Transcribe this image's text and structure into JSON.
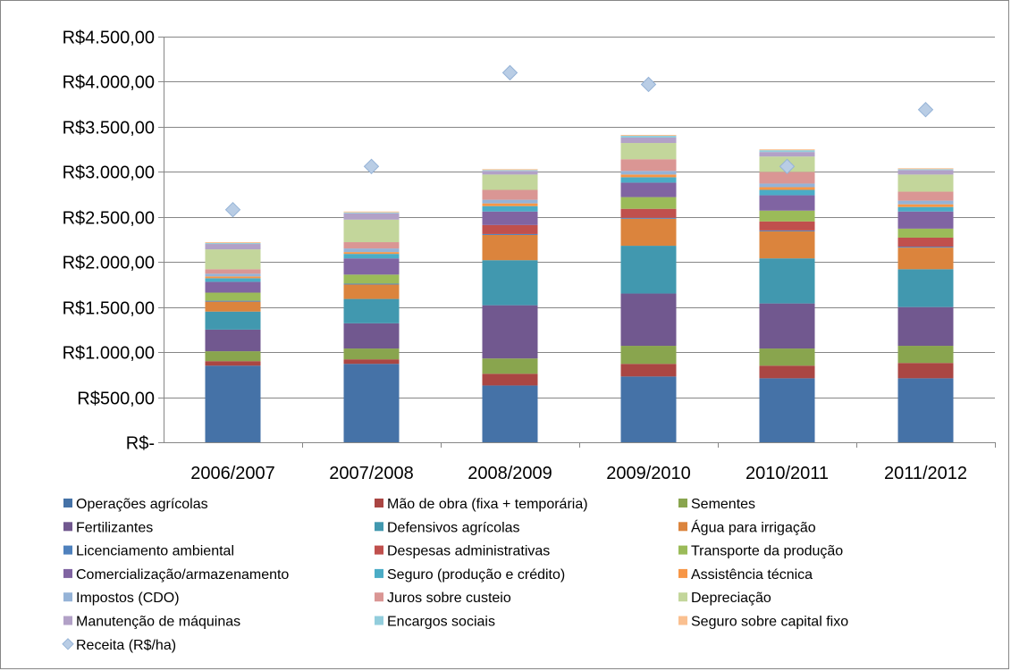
{
  "chart_data": {
    "type": "bar",
    "stacked": true,
    "title": "",
    "xlabel": "",
    "ylabel": "",
    "ylim": [
      0,
      4500
    ],
    "y_ticks": [
      {
        "value": 0,
        "label": "R$-"
      },
      {
        "value": 500,
        "label": "R$500,00"
      },
      {
        "value": 1000,
        "label": "R$1.000,00"
      },
      {
        "value": 1500,
        "label": "R$1.500,00"
      },
      {
        "value": 2000,
        "label": "R$2.000,00"
      },
      {
        "value": 2500,
        "label": "R$2.500,00"
      },
      {
        "value": 3000,
        "label": "R$3.000,00"
      },
      {
        "value": 3500,
        "label": "R$3.500,00"
      },
      {
        "value": 4000,
        "label": "R$4.000,00"
      },
      {
        "value": 4500,
        "label": "R$4.500,00"
      }
    ],
    "grid": true,
    "legend_position": "bottom",
    "categories": [
      "2006/2007",
      "2007/2008",
      "2008/2009",
      "2009/2010",
      "2010/2011",
      "2011/2012"
    ],
    "series": [
      {
        "name": "Operações agrícolas",
        "color": "#4572A7",
        "values": [
          850,
          870,
          630,
          730,
          710,
          710
        ]
      },
      {
        "name": "Mão de obra (fixa + temporária)",
        "color": "#AA4643",
        "values": [
          50,
          50,
          130,
          140,
          140,
          170
        ]
      },
      {
        "name": "Sementes",
        "color": "#89A54E",
        "values": [
          110,
          120,
          170,
          200,
          190,
          190
        ]
      },
      {
        "name": "Fertilizantes",
        "color": "#71588F",
        "values": [
          240,
          280,
          590,
          580,
          500,
          430
        ]
      },
      {
        "name": "Defensivos agrícolas",
        "color": "#4198AF",
        "values": [
          200,
          270,
          500,
          530,
          500,
          420
        ]
      },
      {
        "name": "Água para irrigação",
        "color": "#DB843D",
        "values": [
          110,
          160,
          280,
          300,
          300,
          240
        ]
      },
      {
        "name": "Licenciamento ambiental",
        "color": "#4F81BD",
        "values": [
          10,
          10,
          10,
          10,
          10,
          10
        ]
      },
      {
        "name": "Despesas administrativas",
        "color": "#C0504D",
        "values": [
          0,
          0,
          100,
          100,
          100,
          100
        ]
      },
      {
        "name": "Transporte da produção",
        "color": "#9BBB59",
        "values": [
          90,
          100,
          0,
          130,
          120,
          100
        ]
      },
      {
        "name": "Comercialização/armazenamento",
        "color": "#8064A2",
        "values": [
          120,
          180,
          150,
          160,
          170,
          190
        ]
      },
      {
        "name": "Seguro (produção e crédito)",
        "color": "#4BACC6",
        "values": [
          40,
          50,
          60,
          60,
          60,
          50
        ]
      },
      {
        "name": "Assistência técnica",
        "color": "#F79646",
        "values": [
          20,
          20,
          30,
          30,
          30,
          30
        ]
      },
      {
        "name": "Impostos (CDO)",
        "color": "#95B3D7",
        "values": [
          30,
          40,
          40,
          40,
          40,
          40
        ]
      },
      {
        "name": "Juros sobre custeio",
        "color": "#DA9694",
        "values": [
          50,
          70,
          110,
          130,
          130,
          100
        ]
      },
      {
        "name": "Depreciação",
        "color": "#C3D69B",
        "values": [
          220,
          250,
          170,
          180,
          170,
          190
        ]
      },
      {
        "name": "Manutenção de máquinas",
        "color": "#B2A1C7",
        "values": [
          60,
          70,
          40,
          60,
          50,
          50
        ]
      },
      {
        "name": "Encargos sociais",
        "color": "#92CDDC",
        "values": [
          10,
          10,
          10,
          20,
          20,
          10
        ]
      },
      {
        "name": "Seguro sobre capital fixo",
        "color": "#FAC090",
        "values": [
          10,
          10,
          10,
          10,
          10,
          10
        ]
      }
    ],
    "scatter_series": {
      "name": "Receita (R$/ha)",
      "color": "#B9CDE5",
      "stroke": "#95B3D7",
      "values": [
        2580,
        3060,
        4100,
        3970,
        3060,
        3690
      ]
    },
    "colors": {
      "grid": "#868686",
      "axis": "#868686",
      "border": "#868686"
    }
  }
}
